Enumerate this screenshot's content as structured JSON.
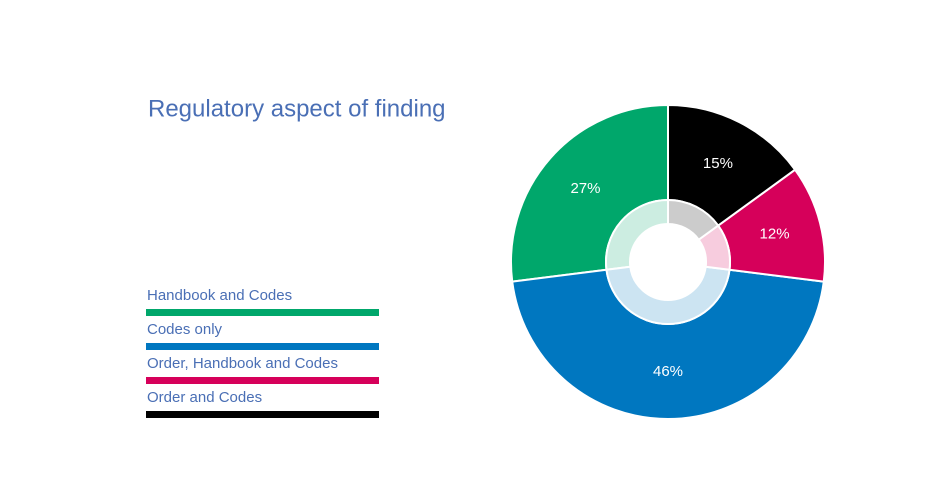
{
  "chart_data": {
    "type": "donut",
    "title": "Regulatory aspect of finding",
    "categories": [
      "Handbook and Codes",
      "Codes only",
      "Order, Handbook and Codes",
      "Order and Codes"
    ],
    "values": [
      27,
      46,
      12,
      15
    ],
    "value_labels": [
      "27%",
      "46%",
      "12%",
      "15%"
    ],
    "colors": [
      "#00a76b",
      "#0077c0",
      "#d6005a",
      "#000000"
    ],
    "legend": "left"
  }
}
